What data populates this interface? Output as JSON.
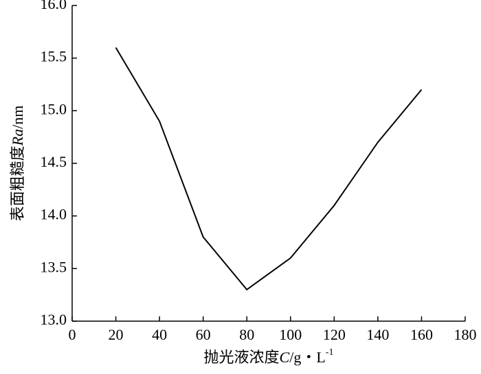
{
  "chart_data": {
    "type": "line",
    "x_label": [
      "抛光液浓度",
      "C",
      "/g・L",
      "-1"
    ],
    "y_label": [
      "表面粗糙度",
      "Ra",
      "/nm"
    ],
    "x": [
      20,
      40,
      60,
      80,
      100,
      120,
      140,
      160
    ],
    "values": [
      15.6,
      14.9,
      13.8,
      13.3,
      13.6,
      14.1,
      14.7,
      15.2
    ],
    "color": "#000000",
    "xlim": [
      0,
      180
    ],
    "xticks": [
      0,
      20,
      40,
      60,
      80,
      100,
      120,
      140,
      160,
      180
    ],
    "ylim": [
      13,
      16
    ],
    "yticks": [
      {
        "value": 13,
        "label": "13.0"
      },
      {
        "value": 13.5,
        "label": "13.5"
      },
      {
        "value": 14,
        "label": "14.0"
      },
      {
        "value": 14.5,
        "label": "14.5"
      },
      {
        "value": 15,
        "label": "15.0"
      },
      {
        "value": 15.5,
        "label": "15.5"
      },
      {
        "value": 16,
        "label": "16.0"
      }
    ],
    "grid": false
  }
}
